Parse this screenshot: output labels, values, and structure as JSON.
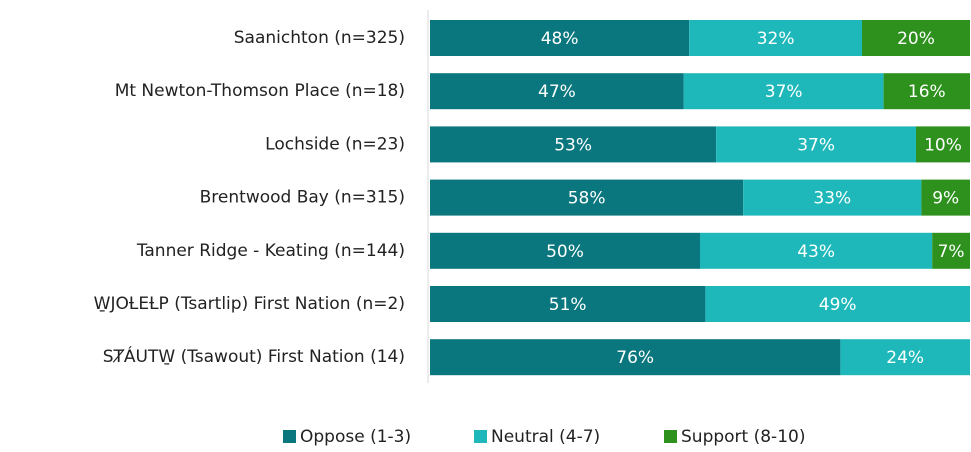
{
  "chart_data": {
    "type": "stacked-bar-horizontal",
    "categories": [
      "Saanichton (n=325)",
      "Mt Newton-Thomson Place (n=18)",
      "Lochside (n=23)",
      "Brentwood Bay (n=315)",
      "Tanner Ridge - Keating (n=144)",
      "W̱JOȽEȽP (Tsartlip) First Nation (n=2)",
      "SȾÁUTW̱ (Tsawout) First Nation (14)"
    ],
    "xlim": [
      0,
      100
    ],
    "legend": "bottom",
    "series": [
      {
        "name": "Oppose (1-3)",
        "color": "#0a777f",
        "values": [
          48,
          47,
          53,
          58,
          50,
          51,
          76
        ],
        "value_labels": [
          "48%",
          "47%",
          "53%",
          "58%",
          "50%",
          "51%",
          "76%"
        ]
      },
      {
        "name": "Neutral (4-7)",
        "color": "#1fb8ba",
        "values": [
          32,
          37,
          37,
          33,
          43,
          49,
          24
        ],
        "value_labels": [
          "32%",
          "37%",
          "37%",
          "33%",
          "43%",
          "49%",
          "24%"
        ]
      },
      {
        "name": "Support (8-10)",
        "color": "#2e911d",
        "values": [
          20,
          16,
          10,
          9,
          7,
          0,
          0
        ],
        "value_labels": [
          "20%",
          "16%",
          "10%",
          "9%",
          "7%",
          null,
          null
        ]
      }
    ]
  }
}
